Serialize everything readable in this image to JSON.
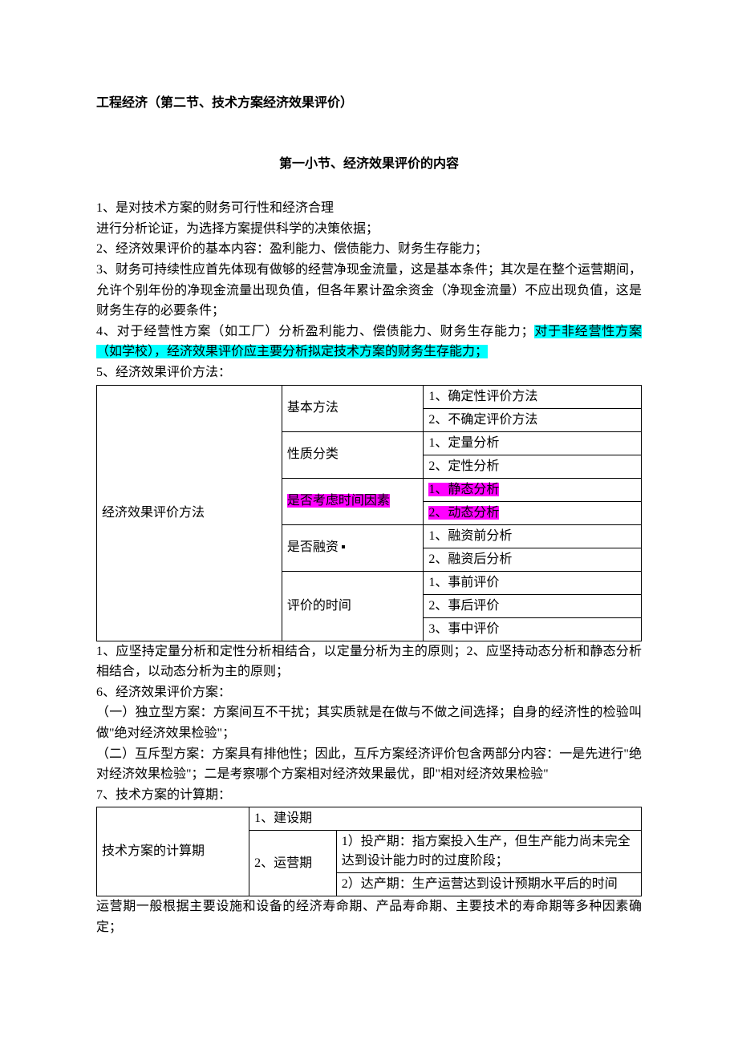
{
  "colors": {
    "highlight_cyan": "#00ffff",
    "highlight_magenta": "#ff00ff",
    "text": "#000000",
    "background": "#ffffff",
    "border": "#000000"
  },
  "typography": {
    "base_font_size_pt": 12,
    "bold_weight": 700,
    "font_family": "SimSun"
  },
  "header": "工程经济（第二节、技术方案经济效果评价）",
  "subtitle": "第一小节、经济效果评价的内容",
  "p1a": "1、是对技术方案的财务可行性和经济合理",
  "p1b": "进行分析论证，为选择方案提供科学的决策依据；",
  "p2": "2、经济效果评价的基本内容：盈利能力、偿债能力、财务生存能力；",
  "p3": "3、财务可持续性应首先体现有做够的经营净现金流量，这是基本条件；其次是在整个运营期间，允许个别年份的净现金流量出现负值，但各年累计盈余资金（净现金流量）不应出现负值，这是财务生存的必要条件；",
  "p4_plain": "4、对于经营性方案（如工厂）分析盈利能力、偿债能力、财务生存能力；",
  "p4_hl_a": "对于非经营性方案（如学校），经济效果评价应主要分析拟定技术方案的财务生存能力；",
  "p5_lead": "5、经济效果评价方法：",
  "table_methods": {
    "row_header": "经济效果评价方法",
    "categories": [
      {
        "label": "基本方法",
        "items": [
          "1、确定性评价方法",
          "2、不确定评价方法"
        ],
        "highlight": false
      },
      {
        "label": "性质分类",
        "items": [
          "1、定量分析",
          "2、定性分析"
        ],
        "highlight": false
      },
      {
        "label": "是否考虑时间因素",
        "items": [
          "1、静态分析",
          "2、动态分析"
        ],
        "highlight": true
      },
      {
        "label": "是否融资",
        "items": [
          "1、融资前分析",
          "2、融资后分析"
        ],
        "highlight": false,
        "dot": true
      },
      {
        "label": "评价的时间",
        "items": [
          "1、事前评价",
          "2、事后评价",
          "3、事中评价"
        ],
        "highlight": false
      }
    ]
  },
  "p5_note": "1、应坚持定量分析和定性分析相结合，以定量分析为主的原则；2、应坚持动态分析和静态分析相结合，以动态分析为主的原则；",
  "p6_lead": "6、经济效果评价方案：",
  "p6_a": "（一）独立型方案：方案间互不干扰；其实质就是在做与不做之间选择；自身的经济性的检验叫做\"绝对经济效果检验\"；",
  "p6_b": "（二）互斥型方案：方案具有排他性；因此，互斥方案经济评价包含两部分内容：一是先进行\"绝对经济效果检验\"；二是考察哪个方案相对经济效果最优，即\"相对经济效果检验\"",
  "p7_lead": "7、技术方案的计算期：",
  "table_calc": {
    "row_header": "技术方案的计算期",
    "r1": "1、建设期",
    "r2_label": "2、运营期",
    "r2_a": "1）投产期：指方案投入生产，但生产能力尚未完全达到设计能力时的过度阶段；",
    "r2_b": "2）达产期：生产运营达到设计预期水平后的时间"
  },
  "p7_note": "运营期一般根据主要设施和设备的经济寿命期、产品寿命期、主要技术的寿命期等多种因素确定；"
}
